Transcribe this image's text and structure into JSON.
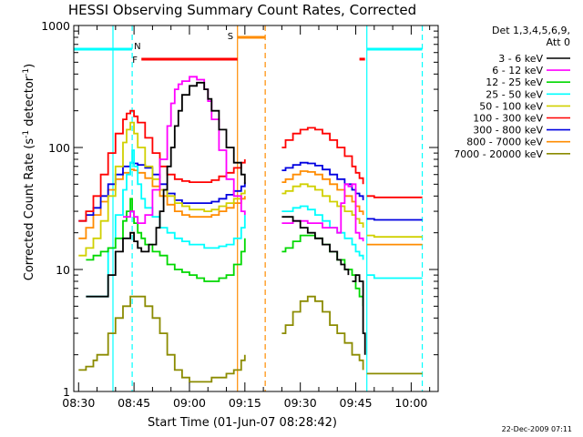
{
  "chart_data": {
    "type": "line",
    "title": "HESSI Observing Summary Count Rates, Corrected",
    "xlabel": "Start Time (01-Jun-07 08:28:42)",
    "ylabel_main": "Corrected Count Rate (s",
    "ylabel_sup1": "-1",
    "ylabel_mid": " detector",
    "ylabel_sup2": "-1",
    "ylabel_end": ")",
    "y_scale": "log",
    "ylim": [
      1,
      1000
    ],
    "xlim": [
      -1.3,
      97.3
    ],
    "x_unit": "minutes after 08:30",
    "x_ticks": [
      {
        "value": 0,
        "label": "08:30"
      },
      {
        "value": 15,
        "label": "08:45"
      },
      {
        "value": 30,
        "label": "09:00"
      },
      {
        "value": 45,
        "label": "09:15"
      },
      {
        "value": 60,
        "label": "09:30"
      },
      {
        "value": 75,
        "label": "09:45"
      },
      {
        "value": 90,
        "label": "10:00"
      }
    ],
    "y_ticks": [
      {
        "value": 1,
        "label": "1"
      },
      {
        "value": 10,
        "label": "10"
      },
      {
        "value": 100,
        "label": "100"
      },
      {
        "value": 1000,
        "label": "1000"
      }
    ],
    "legend": {
      "header_line1": "Det 1,3,4,5,6,9,",
      "header_line2": "Att 0",
      "placement": "right"
    },
    "series": [
      {
        "name": "3 - 6 keV",
        "color": "#000000",
        "segments": [
          {
            "x": [
              2,
              5,
              8,
              10,
              12,
              14,
              15,
              16,
              17,
              19,
              21,
              22,
              23,
              24,
              25,
              26,
              27,
              28,
              30,
              32,
              34,
              35,
              36,
              38,
              40,
              42,
              44,
              45
            ],
            "y": [
              6,
              6,
              9,
              14,
              18,
              20,
              17,
              15,
              14,
              16,
              22,
              30,
              45,
              70,
              100,
              150,
              200,
              270,
              320,
              340,
              300,
              250,
              200,
              140,
              100,
              75,
              60,
              50
            ]
          },
          {
            "x": [
              55,
              56,
              58,
              60,
              62,
              64,
              66,
              68,
              70,
              71,
              72,
              73
            ],
            "y": [
              27,
              27,
              25,
              22,
              20,
              18,
              16,
              14,
              12,
              11,
              10,
              9
            ]
          },
          {
            "x": [
              74,
              75,
              76,
              77,
              77.5
            ],
            "y": [
              8,
              9,
              8,
              3,
              2
            ]
          }
        ]
      },
      {
        "name": "6 - 12 keV",
        "color": "#ff00ff",
        "segments": [
          {
            "x": [
              12,
              14,
              15,
              16,
              17,
              18,
              20,
              22,
              24,
              25,
              26,
              27,
              28,
              30,
              32,
              34,
              35,
              36,
              38,
              40,
              42,
              44,
              45
            ],
            "y": [
              27,
              30,
              27,
              24,
              24,
              28,
              45,
              80,
              150,
              230,
              300,
              330,
              350,
              380,
              360,
              300,
              240,
              170,
              95,
              55,
              40,
              30,
              28
            ]
          },
          {
            "x": [
              55,
              58,
              62,
              66,
              70,
              71,
              72,
              73,
              74,
              75,
              76,
              77
            ],
            "y": [
              24,
              25,
              24,
              22,
              20,
              35,
              50,
              48,
              50,
              20,
              18,
              17
            ]
          }
        ]
      },
      {
        "name": "12 - 25 keV",
        "color": "#00d800",
        "segments": [
          {
            "x": [
              2,
              4,
              6,
              8,
              10,
              12,
              13,
              14,
              14.5,
              15,
              16,
              17,
              18,
              20,
              22,
              24,
              26,
              28,
              30,
              32,
              34,
              36,
              38,
              40,
              42,
              44,
              45
            ],
            "y": [
              12,
              13,
              14,
              15,
              18,
              25,
              30,
              38,
              30,
              24,
              20,
              18,
              16,
              14,
              13,
              11,
              10,
              9.5,
              9,
              8.5,
              8,
              8,
              8.5,
              9,
              11,
              14,
              18
            ]
          },
          {
            "x": [
              55,
              56,
              58,
              60,
              62,
              64,
              66,
              68,
              70,
              72,
              74,
              75,
              76,
              77
            ],
            "y": [
              14,
              15,
              17,
              19,
              19,
              18,
              16,
              14,
              12,
              10,
              9,
              7,
              6,
              5
            ]
          }
        ]
      },
      {
        "name": "25 - 50 keV",
        "color": "#00ffff",
        "segments": [
          {
            "x": [
              2,
              5,
              8,
              10,
              12,
              13,
              14,
              14.5,
              15,
              16,
              17,
              18,
              20,
              22,
              24,
              26,
              28,
              30,
              32,
              34,
              36,
              38,
              40,
              42,
              44,
              45
            ],
            "y": [
              6,
              6,
              15,
              28,
              45,
              60,
              75,
              95,
              70,
              50,
              38,
              32,
              27,
              22,
              20,
              18,
              17,
              16,
              16,
              15,
              15,
              15.5,
              16,
              18,
              22,
              28
            ]
          },
          {
            "x": [
              55,
              56,
              58,
              60,
              62,
              64,
              66,
              68,
              70,
              72,
              74,
              75,
              76,
              77
            ],
            "y": [
              30,
              30,
              32,
              33,
              31,
              28,
              25,
              22,
              20,
              18,
              16,
              14,
              13,
              12
            ]
          },
          {
            "x": [
              78,
              80,
              85,
              90,
              93
            ],
            "y": [
              9,
              8.5,
              8.5,
              8.5,
              8.5
            ]
          }
        ]
      },
      {
        "name": "50 - 100 keV",
        "color": "#d0d000",
        "segments": [
          {
            "x": [
              0,
              2,
              4,
              6,
              8,
              10,
              12,
              13,
              14,
              15,
              16,
              18,
              20,
              22,
              24,
              26,
              28,
              30,
              32,
              34,
              36,
              38,
              40,
              42,
              44,
              45
            ],
            "y": [
              13,
              15,
              18,
              25,
              40,
              70,
              110,
              140,
              160,
              130,
              100,
              70,
              55,
              45,
              40,
              35,
              33,
              31,
              31,
              30,
              31,
              33,
              35,
              38,
              42,
              45
            ]
          },
          {
            "x": [
              55,
              56,
              58,
              60,
              62,
              64,
              66,
              68,
              70,
              72,
              74,
              75,
              76,
              77
            ],
            "y": [
              42,
              44,
              48,
              50,
              48,
              45,
              40,
              36,
              33,
              30,
              28,
              26,
              24,
              22
            ]
          },
          {
            "x": [
              78,
              80,
              85,
              90,
              93
            ],
            "y": [
              19,
              18.5,
              18.5,
              18.5,
              18.5
            ]
          }
        ]
      },
      {
        "name": "100 - 300 keV",
        "color": "#ff0000",
        "segments": [
          {
            "x": [
              0,
              2,
              4,
              6,
              8,
              10,
              12,
              13,
              14,
              15,
              16,
              18,
              20,
              22,
              24,
              26,
              28,
              30,
              32,
              34,
              36,
              38,
              40,
              42,
              44,
              45
            ],
            "y": [
              25,
              30,
              40,
              60,
              90,
              130,
              170,
              190,
              200,
              180,
              160,
              120,
              90,
              70,
              60,
              55,
              53,
              52,
              52,
              52,
              54,
              58,
              62,
              68,
              75,
              80
            ]
          },
          {
            "x": [
              55,
              56,
              58,
              60,
              62,
              64,
              66,
              68,
              70,
              72,
              74,
              75,
              76,
              77
            ],
            "y": [
              100,
              115,
              130,
              140,
              145,
              140,
              130,
              115,
              100,
              85,
              70,
              62,
              56,
              50
            ]
          },
          {
            "x": [
              78,
              80,
              85,
              90,
              93
            ],
            "y": [
              40,
              39,
              39,
              39,
              39
            ]
          }
        ]
      },
      {
        "name": "300 - 800 keV",
        "color": "#0000e0",
        "segments": [
          {
            "x": [
              0,
              2,
              4,
              6,
              8,
              10,
              12,
              14,
              15,
              16,
              18,
              20,
              22,
              24,
              26,
              28,
              30,
              32,
              34,
              36,
              38,
              40,
              42,
              44,
              45
            ],
            "y": [
              25,
              28,
              32,
              40,
              50,
              60,
              70,
              75,
              74,
              72,
              68,
              60,
              50,
              42,
              37,
              35,
              35,
              35,
              35,
              36,
              38,
              41,
              44,
              48,
              52
            ]
          },
          {
            "x": [
              55,
              56,
              58,
              60,
              62,
              64,
              66,
              68,
              70,
              72,
              74,
              75,
              76,
              77
            ],
            "y": [
              65,
              68,
              72,
              75,
              74,
              71,
              66,
              60,
              55,
              50,
              45,
              42,
              40,
              37
            ]
          },
          {
            "x": [
              78,
              80,
              85,
              90,
              93
            ],
            "y": [
              26,
              25.5,
              25.5,
              25.5,
              25.5
            ]
          }
        ]
      },
      {
        "name": "800 - 7000 keV",
        "color": "#ff8c00",
        "segments": [
          {
            "x": [
              0,
              2,
              4,
              6,
              8,
              10,
              12,
              14,
              15,
              16,
              18,
              20,
              22,
              24,
              26,
              28,
              30,
              32,
              34,
              36,
              38,
              40,
              42,
              44,
              45
            ],
            "y": [
              18,
              22,
              28,
              36,
              45,
              55,
              62,
              66,
              65,
              62,
              56,
              48,
              40,
              34,
              30,
              28,
              27,
              27,
              27,
              28,
              30,
              32,
              35,
              38,
              40
            ]
          },
          {
            "x": [
              55,
              56,
              58,
              60,
              62,
              64,
              66,
              68,
              70,
              72,
              74,
              75,
              76,
              77
            ],
            "y": [
              52,
              55,
              60,
              64,
              63,
              60,
              55,
              50,
              45,
              40,
              36,
              33,
              30,
              28
            ]
          },
          {
            "x": [
              78,
              80,
              85,
              90,
              93
            ],
            "y": [
              16,
              16,
              16,
              16,
              16
            ]
          }
        ]
      },
      {
        "name": "7000 - 20000 keV",
        "color": "#8b8b00",
        "segments": [
          {
            "x": [
              0,
              2,
              4,
              5,
              6,
              8,
              10,
              12,
              14,
              16,
              18,
              20,
              22,
              24,
              26,
              28,
              30,
              32,
              34,
              36,
              38,
              40,
              42,
              44,
              45
            ],
            "y": [
              1.5,
              1.6,
              1.8,
              2,
              2,
              3,
              4,
              5,
              6,
              6,
              5,
              4,
              3,
              2,
              1.5,
              1.3,
              1.2,
              1.2,
              1.2,
              1.3,
              1.3,
              1.4,
              1.5,
              1.8,
              2
            ]
          },
          {
            "x": [
              55,
              56,
              58,
              60,
              62,
              64,
              66,
              68,
              70,
              72,
              74,
              75,
              76,
              77
            ],
            "y": [
              3,
              3.5,
              4.5,
              5.5,
              6,
              5.5,
              4.5,
              3.5,
              3,
              2.5,
              2,
              2,
              1.8,
              1.5
            ]
          },
          {
            "x": [
              78,
              80,
              85,
              90,
              93
            ],
            "y": [
              1.4,
              1.4,
              1.4,
              1.4,
              1.4
            ]
          }
        ]
      }
    ],
    "annotations": [
      {
        "label": "N",
        "color": "#00ffff",
        "x_start": -1.3,
        "x_end": 14.5,
        "level": 640
      },
      {
        "label": "F",
        "color": "#ff0000",
        "x_start": 17,
        "x_end": 43,
        "level": 530
      },
      {
        "label": "S",
        "color": "#ff8c00",
        "x_start": 43,
        "x_end": 50.5,
        "level": 800
      },
      {
        "label": "",
        "color": "#ff0000",
        "x_start": 76,
        "x_end": 77.5,
        "level": 530
      },
      {
        "label": "",
        "color": "#00ffff",
        "x_start": 78,
        "x_end": 93,
        "level": 640
      }
    ],
    "vertical_markers": [
      {
        "x": 9.3,
        "color": "#00ffff",
        "style": "solid"
      },
      {
        "x": 14.5,
        "color": "#00ffff",
        "style": "dashed"
      },
      {
        "x": 43,
        "color": "#ff8c00",
        "style": "solid"
      },
      {
        "x": 50.5,
        "color": "#ff8c00",
        "style": "dashed"
      },
      {
        "x": 78,
        "color": "#00ffff",
        "style": "solid"
      },
      {
        "x": 93,
        "color": "#00ffff",
        "style": "dashed"
      }
    ]
  },
  "footer_timestamp": "22-Dec-2009 07:11"
}
